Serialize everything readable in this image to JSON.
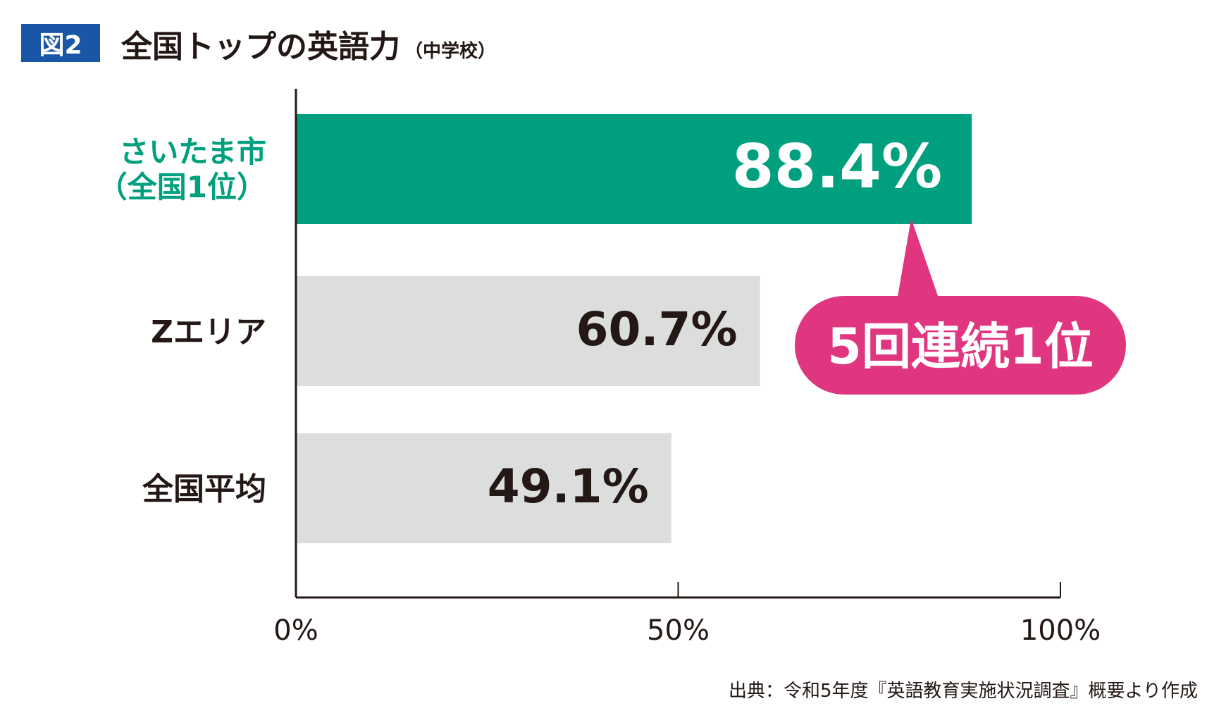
{
  "header": {
    "figure_label": "図2",
    "title": "全国トップの英語力",
    "subtitle": "（中学校）"
  },
  "callout": {
    "text": "5回連続1位",
    "color": "#e0357f"
  },
  "source_note": "出典：令和5年度『英語教育実施状況調査』概要より作成",
  "colors": {
    "highlight": "#00a07e",
    "bar": "#dcdddd",
    "text": "#231815",
    "axis": "#231815"
  },
  "chart_data": {
    "type": "bar",
    "orientation": "horizontal",
    "categories": [
      [
        "さいたま市",
        "（全国1位）"
      ],
      [
        "Zエリア"
      ],
      [
        "全国平均"
      ]
    ],
    "values": [
      88.4,
      60.7,
      49.1
    ],
    "value_labels": [
      "88.4%",
      "60.7%",
      "49.1%"
    ],
    "highlight_index": 0,
    "xlim": [
      0,
      100
    ],
    "xticks": [
      0,
      50,
      100
    ],
    "xtick_labels": [
      "0%",
      "50%",
      "100%"
    ],
    "grid": false
  }
}
